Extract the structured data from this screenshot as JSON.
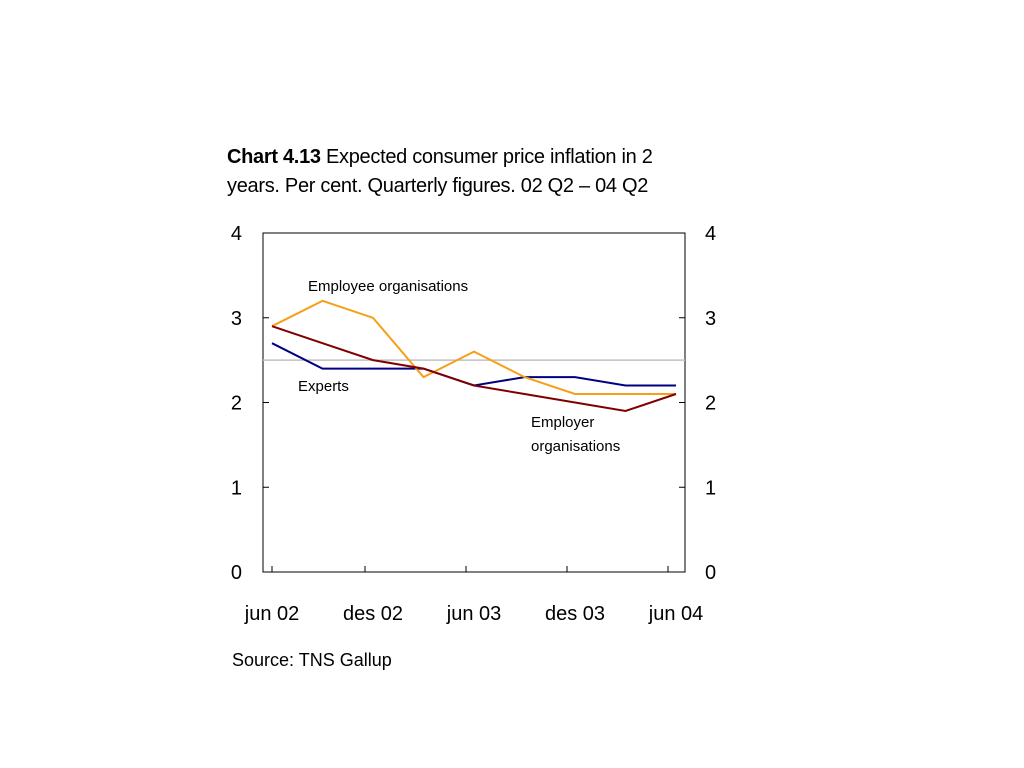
{
  "header": {
    "chart_number": "Chart 4.13",
    "title_text": "Expected consumer price inflation in 2 years. Per cent. Quarterly figures. 02 Q2 – 04 Q2"
  },
  "footer": {
    "source": "Source: TNS Gallup"
  },
  "colors": {
    "experts": "#000080",
    "employee": "#f5a018",
    "employer": "#800000",
    "target": "#c0c0c0"
  },
  "chart_data": {
    "type": "line",
    "title": "Chart 4.13 Expected consumer price inflation in 2 years. Per cent. Quarterly figures. 02 Q2 – 04 Q2",
    "x": [
      "02 Q2",
      "02 Q3",
      "02 Q4",
      "03 Q1",
      "03 Q2",
      "03 Q3",
      "03 Q4",
      "04 Q1",
      "04 Q2"
    ],
    "x_tick_labels": [
      "jun 02",
      "des 02",
      "jun 03",
      "des 03",
      "jun 04"
    ],
    "ylim": [
      0,
      4
    ],
    "y_ticks": [
      "0",
      "1",
      "2",
      "3",
      "4"
    ],
    "reference_line": 2.5,
    "series": [
      {
        "name": "Experts",
        "color_key": "experts",
        "values": [
          2.7,
          2.4,
          2.4,
          2.4,
          2.2,
          2.3,
          2.3,
          2.2,
          2.2
        ]
      },
      {
        "name": "Employee organisations",
        "color_key": "employee",
        "values": [
          2.9,
          3.2,
          3.0,
          2.3,
          2.6,
          2.3,
          2.1,
          2.1,
          2.1
        ]
      },
      {
        "name": "Employer organisations",
        "color_key": "employer",
        "values": [
          2.9,
          2.7,
          2.5,
          2.4,
          2.2,
          2.1,
          2.0,
          1.9,
          2.1
        ]
      }
    ],
    "annotations": {
      "employee": "Employee organisations",
      "experts": "Experts",
      "employer_line1": "Employer",
      "employer_line2": "organisations"
    },
    "grid": false
  }
}
